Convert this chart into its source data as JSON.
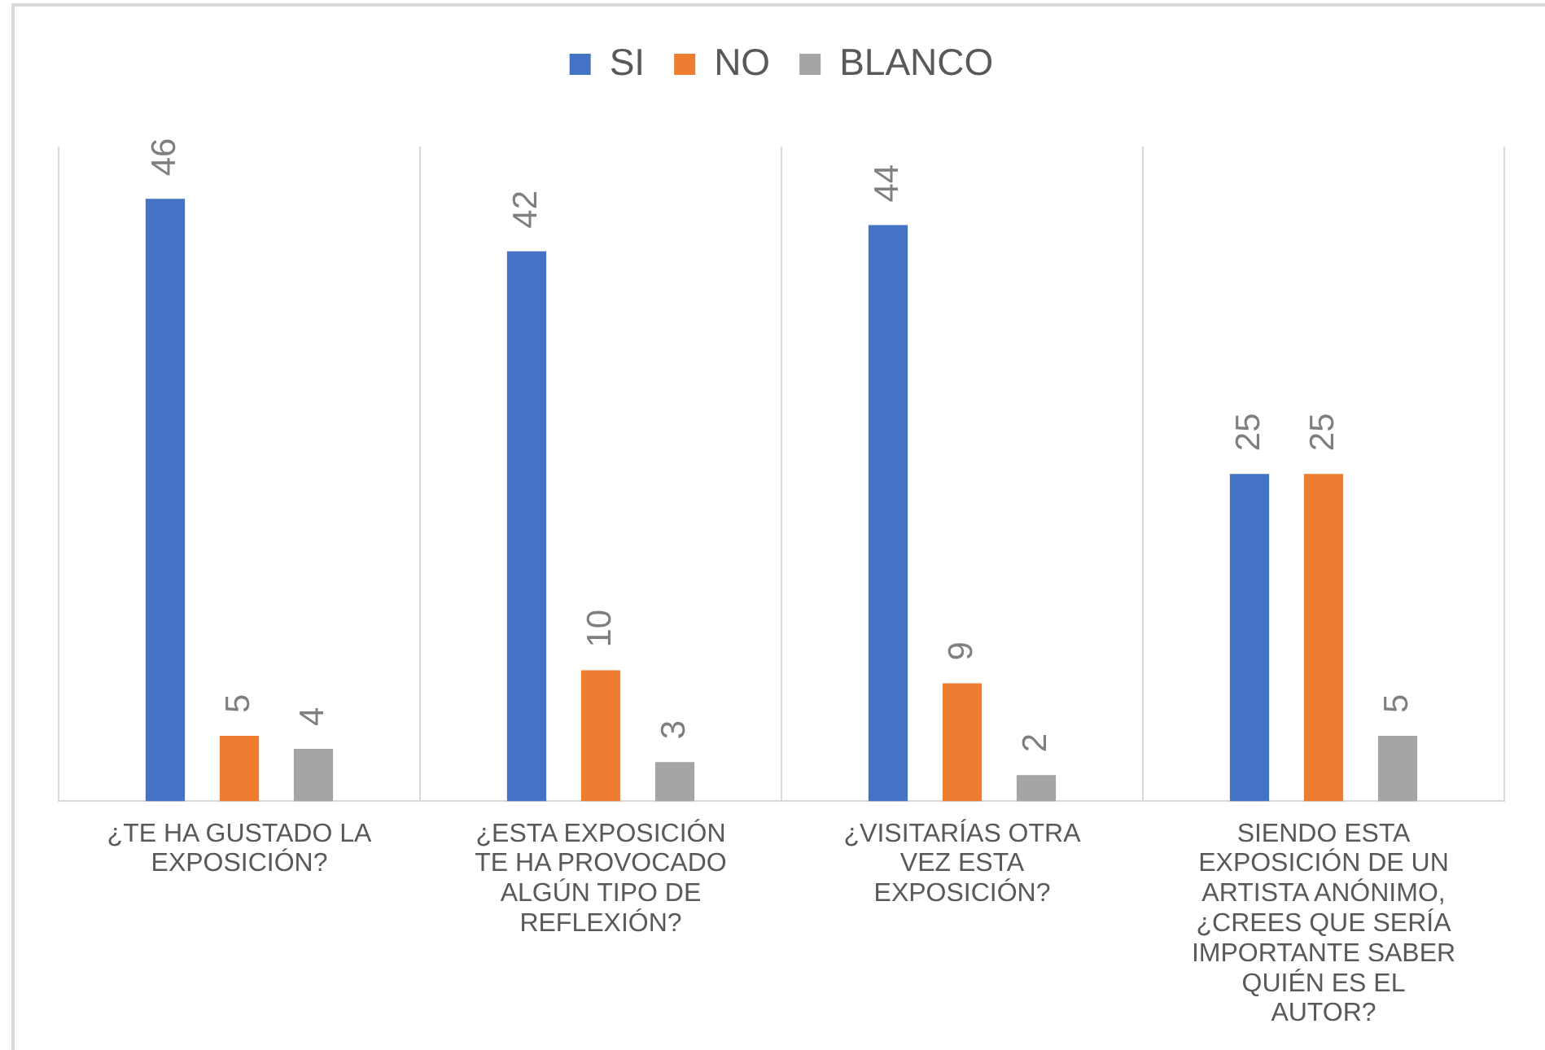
{
  "chart_data": {
    "type": "bar",
    "categories": [
      "¿TE HA GUSTADO LA EXPOSICIÓN?",
      "¿ESTA EXPOSICIÓN TE HA PROVOCADO ALGÚN TIPO DE REFLEXIÓN?",
      "¿VISITARÍAS OTRA VEZ ESTA EXPOSICIÓN?",
      "SIENDO ESTA EXPOSICIÓN DE UN ARTISTA ANÓNIMO, ¿CREES QUE SERÍA IMPORTANTE SABER QUIÉN ES EL AUTOR?"
    ],
    "series": [
      {
        "name": "SI",
        "color": "#4472c4",
        "values": [
          46,
          42,
          44,
          25
        ]
      },
      {
        "name": "NO",
        "color": "#ed7d31",
        "values": [
          5,
          10,
          9,
          25
        ]
      },
      {
        "name": "BLANCO",
        "color": "#a5a5a5",
        "values": [
          4,
          3,
          2,
          5
        ]
      }
    ],
    "ylim": [
      0,
      50
    ],
    "tick_labels": "x",
    "data_labels": true,
    "legend": "top",
    "grid": "x"
  }
}
